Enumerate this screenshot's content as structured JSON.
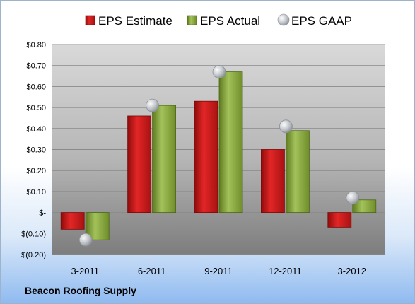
{
  "company": "Beacon Roofing Supply",
  "chart_data": {
    "type": "bar",
    "title": "",
    "xlabel": "",
    "ylabel": "",
    "categories": [
      "3-2011",
      "6-2011",
      "9-2011",
      "12-2011",
      "3-2012"
    ],
    "series": [
      {
        "name": "EPS Estimate",
        "kind": "bar",
        "color": "#cc1a1a",
        "values": [
          -0.08,
          0.46,
          0.53,
          0.3,
          -0.07
        ]
      },
      {
        "name": "EPS Actual",
        "kind": "bar",
        "color": "#8aaa3a",
        "values": [
          -0.13,
          0.51,
          0.67,
          0.39,
          0.06
        ]
      },
      {
        "name": "EPS GAAP",
        "kind": "marker",
        "color": "#b0b4bc",
        "values": [
          -0.13,
          0.51,
          0.67,
          0.41,
          0.07
        ]
      }
    ],
    "ylim": [
      -0.2,
      0.8
    ],
    "yticks": [
      0.8,
      0.7,
      0.6,
      0.5,
      0.4,
      0.3,
      0.2,
      0.1,
      0,
      -0.1,
      -0.2
    ],
    "ytick_labels": [
      "$0.80",
      "$0.70",
      "$0.60",
      "$0.50",
      "$0.40",
      "$0.30",
      "$0.20",
      "$0.10",
      "$-",
      "$(0.10)",
      "$(0.20)"
    ],
    "grid": true,
    "legend_position": "top"
  }
}
